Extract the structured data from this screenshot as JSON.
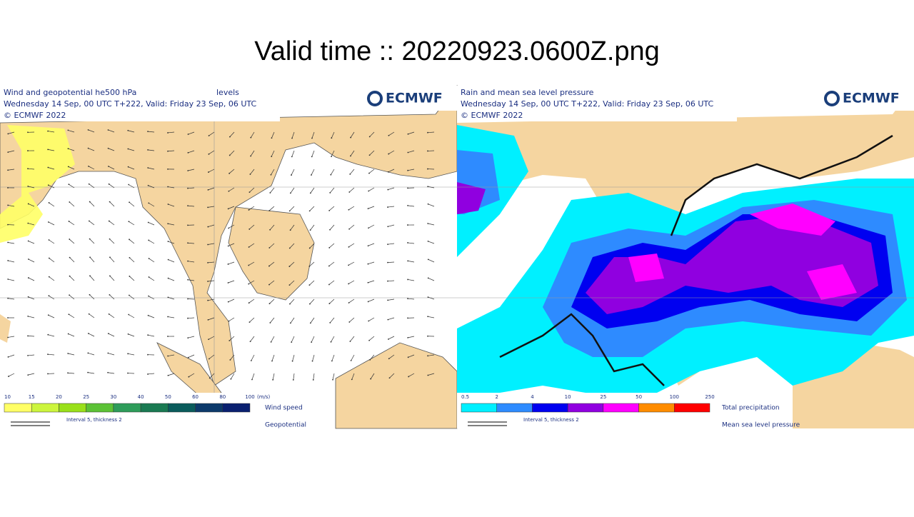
{
  "title": "Valid time :: 20220923.0600Z.png",
  "left_panel": {
    "title": "Wind and geopotential he500 hPa",
    "title_suffix": "levels",
    "subtitle": "Wednesday 14 Sep, 00 UTC T+222, Valid: Friday 23 Sep, 06 UTC",
    "copyright": "© ECMWF 2022",
    "logo": "ECMWF",
    "colorbar": {
      "ticks": [
        10,
        15,
        20,
        25,
        30,
        40,
        50,
        60,
        80,
        100
      ],
      "unit": "(m/s)",
      "colors": [
        "#ffff66",
        "#ccf53d",
        "#99e01a",
        "#5cc236",
        "#2e9c5a",
        "#1a7a52",
        "#0a5c5c",
        "#0d3a6b",
        "#0a2070"
      ],
      "label": "Wind speed"
    },
    "contour_label": "Geopotential",
    "contour_note": "Interval 5, thickness 2"
  },
  "right_panel": {
    "title": "Rain and mean sea level pressure",
    "subtitle": "Wednesday 14 Sep, 00 UTC T+222, Valid: Friday 23 Sep, 06 UTC",
    "copyright": "© ECMWF 2022",
    "logo": "ECMWF",
    "colorbar": {
      "ticks": [
        0.5,
        2,
        4,
        10,
        25,
        50,
        100,
        250
      ],
      "colors": [
        "#00f0ff",
        "#2e8bff",
        "#0000f0",
        "#9000e0",
        "#ff00ff",
        "#ff8c00",
        "#ff0000"
      ],
      "label": "Total precipitation"
    },
    "contour_label": "Mean sea level pressure",
    "contour_note": "Interval 5, thickness 2"
  }
}
